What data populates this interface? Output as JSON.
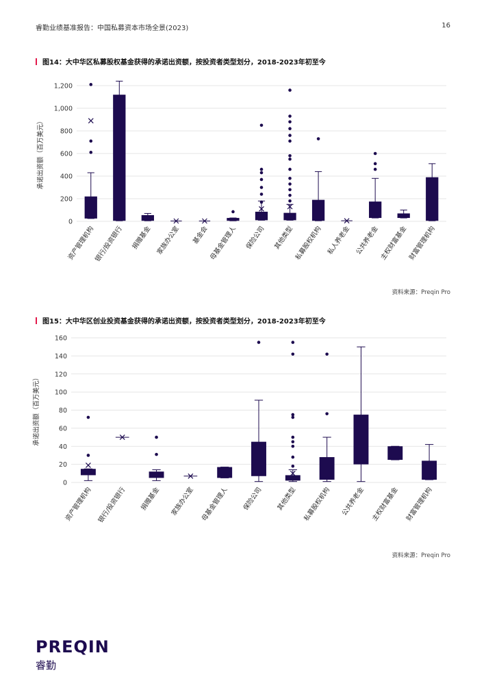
{
  "header": {
    "title": "睿勤业绩基准报告：中国私募资本市场全景(2023)",
    "page_number": "16"
  },
  "charts_meta": [
    {
      "fig_title": "图14：大中华区私募股权基金获得的承诺出资额，按投资者类型划分，2018-2023年初至今",
      "source": "资料来源：Preqin Pro"
    },
    {
      "fig_title": "图15：大中华区创业投资基金获得的承诺出资额，按投资者类型划分，2018-2023年初至今",
      "source": "资料来源：Preqin Pro"
    }
  ],
  "colors": {
    "box": "#1d0b4f",
    "accent": "#e2184a",
    "grid": "#dddddd"
  },
  "logo": {
    "main": "PREQIN",
    "sub": "睿勤"
  },
  "chart_data": [
    {
      "type": "box",
      "title": "图14：大中华区私募股权基金获得的承诺出资额，按投资者类型划分，2018-2023年初至今",
      "xlabel": "",
      "ylabel": "承诺出资额（百万美元）",
      "ylim": [
        0,
        1200
      ],
      "yticks": [
        0,
        200,
        400,
        600,
        800,
        1000,
        1200
      ],
      "ytick_labels": [
        "0",
        "200",
        "400",
        "600",
        "800",
        "1,000",
        "1,200"
      ],
      "grid": true,
      "categories": [
        "资产管理机构",
        "银行/投资银行",
        "捐赠基金",
        "家族办公室",
        "基金会",
        "母基金管理人",
        "保险公司",
        "其他类型",
        "私募股权机构",
        "私人养老金",
        "公共养老金",
        "主权财富基金",
        "财富管理机构"
      ],
      "boxes": [
        {
          "q1": 25,
          "q3": 220,
          "median": null,
          "whisker_low": 25,
          "whisker_high": 430,
          "mean": 890,
          "outliers": [
            1210,
            710,
            610
          ]
        },
        {
          "q1": 5,
          "q3": 1120,
          "median": null,
          "whisker_low": 5,
          "whisker_high": 1240,
          "mean": null,
          "outliers": []
        },
        {
          "q1": 5,
          "q3": 55,
          "median": null,
          "whisker_low": 5,
          "whisker_high": 70,
          "mean": null,
          "outliers": []
        },
        {
          "q1": null,
          "q3": null,
          "median": null,
          "whisker_low": null,
          "whisker_high": null,
          "mean": 3,
          "outliers": []
        },
        {
          "q1": null,
          "q3": null,
          "median": null,
          "whisker_low": null,
          "whisker_high": null,
          "mean": 3,
          "outliers": []
        },
        {
          "q1": 5,
          "q3": 30,
          "median": null,
          "whisker_low": 5,
          "whisker_high": 30,
          "mean": null,
          "outliers": [
            85
          ]
        },
        {
          "q1": 10,
          "q3": 85,
          "median": null,
          "whisker_low": 10,
          "whisker_high": 180,
          "mean": 110,
          "outliers": [
            850,
            460,
            430,
            370,
            300,
            240,
            170
          ]
        },
        {
          "q1": 10,
          "q3": 75,
          "median": null,
          "whisker_low": 10,
          "whisker_high": 150,
          "mean": 130,
          "outliers": [
            1160,
            930,
            880,
            820,
            760,
            710,
            580,
            550,
            460,
            380,
            330,
            280,
            230,
            180
          ]
        },
        {
          "q1": 5,
          "q3": 190,
          "median": null,
          "whisker_low": 5,
          "whisker_high": 440,
          "mean": null,
          "outliers": [
            730
          ]
        },
        {
          "q1": null,
          "q3": null,
          "median": null,
          "whisker_low": null,
          "whisker_high": null,
          "mean": 5,
          "outliers": []
        },
        {
          "q1": 30,
          "q3": 175,
          "median": null,
          "whisker_low": 30,
          "whisker_high": 380,
          "mean": null,
          "outliers": [
            600,
            510,
            460
          ]
        },
        {
          "q1": 30,
          "q3": 70,
          "median": null,
          "whisker_low": 30,
          "whisker_high": 100,
          "mean": null,
          "outliers": []
        },
        {
          "q1": 5,
          "q3": 390,
          "median": null,
          "whisker_low": 5,
          "whisker_high": 510,
          "mean": null,
          "outliers": []
        }
      ]
    },
    {
      "type": "box",
      "title": "图15：大中华区创业投资基金获得的承诺出资额，按投资者类型划分，2018-2023年初至今",
      "xlabel": "",
      "ylabel": "承诺出资额（百万美元）",
      "ylim": [
        0,
        160
      ],
      "yticks": [
        0,
        20,
        40,
        60,
        80,
        100,
        120,
        140,
        160
      ],
      "ytick_labels": [
        "0",
        "20",
        "40",
        "60",
        "80",
        "100",
        "120",
        "140",
        "160"
      ],
      "grid": true,
      "categories": [
        "资产管理机构",
        "银行/投资银行",
        "捐赠基金",
        "家族办公室",
        "母基金管理人",
        "保险公司",
        "其他类型",
        "私募股权机构",
        "公共养老金",
        "主权财富基金",
        "财富管理机构"
      ],
      "boxes": [
        {
          "q1": 8,
          "q3": 15,
          "median": null,
          "whisker_low": 2,
          "whisker_high": 15,
          "mean": 19,
          "outliers": [
            72,
            30
          ]
        },
        {
          "q1": null,
          "q3": null,
          "median": null,
          "whisker_low": null,
          "whisker_high": null,
          "mean": 50,
          "outliers": []
        },
        {
          "q1": 5,
          "q3": 12,
          "median": null,
          "whisker_low": 2,
          "whisker_high": 14,
          "mean": null,
          "outliers": [
            50,
            31
          ]
        },
        {
          "q1": null,
          "q3": null,
          "median": null,
          "whisker_low": null,
          "whisker_high": null,
          "mean": 7,
          "outliers": []
        },
        {
          "q1": 5,
          "q3": 17,
          "median": null,
          "whisker_low": 5,
          "whisker_high": 17,
          "mean": null,
          "outliers": []
        },
        {
          "q1": 7,
          "q3": 45,
          "median": null,
          "whisker_low": 1,
          "whisker_high": 91,
          "mean": null,
          "outliers": [
            155
          ]
        },
        {
          "q1": 2,
          "q3": 8,
          "median": null,
          "whisker_low": 1,
          "whisker_high": 14,
          "mean": 10,
          "outliers": [
            155,
            142,
            75,
            72,
            50,
            45,
            40,
            28,
            18
          ]
        },
        {
          "q1": 3,
          "q3": 28,
          "median": null,
          "whisker_low": 1,
          "whisker_high": 50,
          "mean": null,
          "outliers": [
            142,
            76
          ]
        },
        {
          "q1": 20,
          "q3": 75,
          "median": null,
          "whisker_low": 1,
          "whisker_high": 150,
          "mean": null,
          "outliers": []
        },
        {
          "q1": 25,
          "q3": 40,
          "median": null,
          "whisker_low": 25,
          "whisker_high": 40,
          "mean": null,
          "outliers": []
        },
        {
          "q1": 3,
          "q3": 24,
          "median": null,
          "whisker_low": 3,
          "whisker_high": 42,
          "mean": null,
          "outliers": []
        }
      ]
    }
  ]
}
